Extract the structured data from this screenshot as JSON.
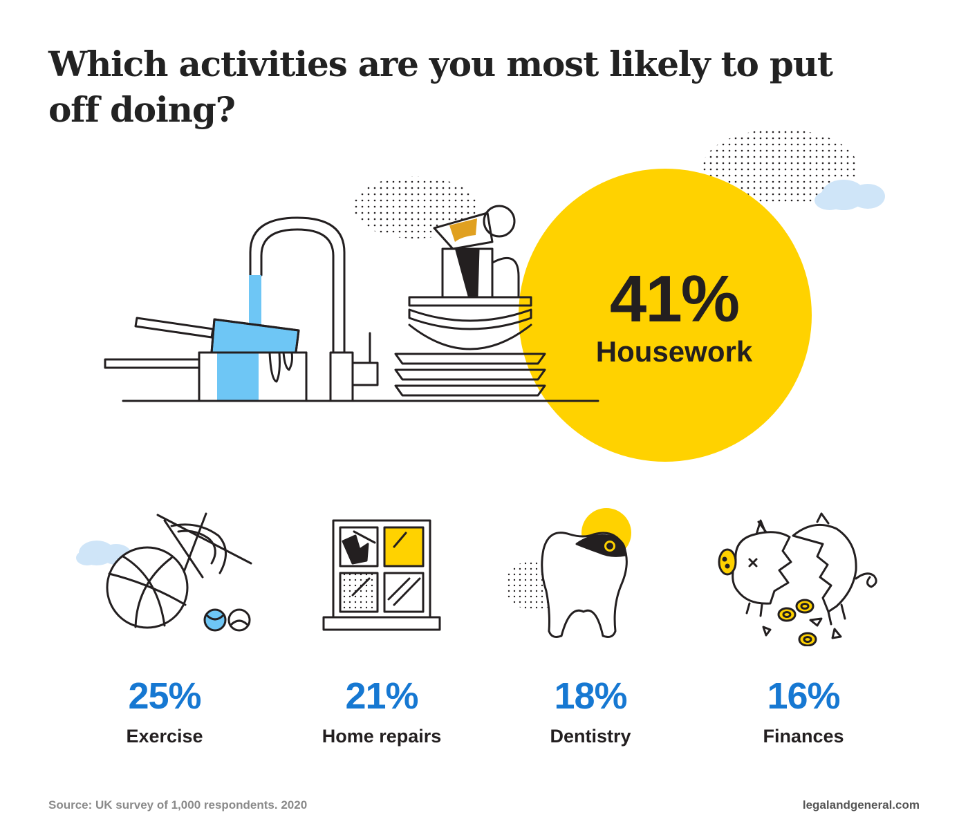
{
  "title": "Which activities are you most likely to put off doing?",
  "colors": {
    "accent_yellow": "#FFD200",
    "accent_blue": "#1678D2",
    "water_blue": "#6EC6F5",
    "line": "#231F20"
  },
  "chart_data": {
    "type": "table",
    "title": "Which activities are you most likely to put off doing?",
    "unit": "%",
    "categories": [
      "Housework",
      "Exercise",
      "Home repairs",
      "Dentistry",
      "Finances"
    ],
    "values": [
      41,
      25,
      21,
      18,
      16
    ],
    "value_labels": [
      "41%",
      "25%",
      "21%",
      "18%",
      "16%"
    ],
    "highlight": "Housework"
  },
  "hero": {
    "icon": "sink-with-dishes-icon"
  },
  "cards": [
    {
      "icon": "sports-balls-cobweb-icon"
    },
    {
      "icon": "broken-window-icon"
    },
    {
      "icon": "tooth-icon"
    },
    {
      "icon": "broken-piggy-bank-icon"
    }
  ],
  "footer": {
    "source": "Source: UK survey of 1,000 respondents. 2020",
    "brand": "legalandgeneral.com"
  }
}
